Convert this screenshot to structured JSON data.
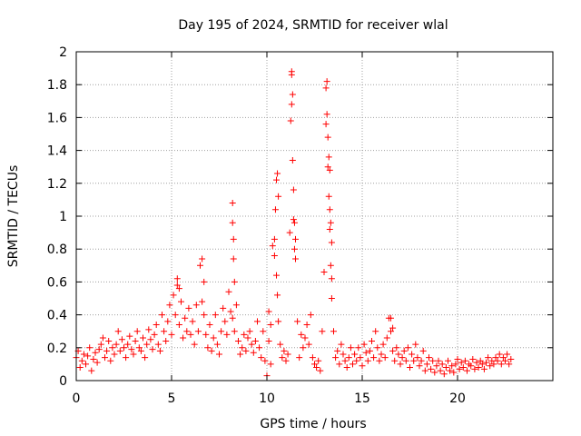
{
  "chart_data": {
    "type": "scatter",
    "title": "Day 195 of 2024, SRMTID for receiver wlal",
    "xlabel": "GPS time / hours",
    "ylabel": "SRMTID / TECUs",
    "xlim": [
      0,
      25
    ],
    "ylim": [
      0,
      2
    ],
    "x_ticks": [
      0,
      5,
      10,
      15,
      20
    ],
    "x_tick_labels": [
      "0",
      "5",
      "10",
      "15",
      "20"
    ],
    "y_ticks": [
      0,
      0.2,
      0.4,
      0.6,
      0.8,
      1,
      1.2,
      1.4,
      1.6,
      1.8,
      2
    ],
    "y_tick_labels": [
      "0",
      "0.2",
      "0.4",
      "0.6",
      "0.8",
      "1",
      "1.2",
      "1.4",
      "1.6",
      "1.8",
      "2"
    ],
    "grid": true,
    "marker": "+",
    "series": [
      {
        "name": "SRMTID",
        "color": "#ff0000",
        "x": [
          0.0,
          0.1,
          0.2,
          0.3,
          0.4,
          0.5,
          0.6,
          0.7,
          0.8,
          0.9,
          1.0,
          1.1,
          1.2,
          1.3,
          1.4,
          1.5,
          1.6,
          1.7,
          1.8,
          1.9,
          2.0,
          2.1,
          2.2,
          2.3,
          2.4,
          2.5,
          2.6,
          2.7,
          2.8,
          2.9,
          3.0,
          3.1,
          3.2,
          3.3,
          3.4,
          3.5,
          3.6,
          3.7,
          3.8,
          3.9,
          4.0,
          4.1,
          4.2,
          4.3,
          4.4,
          4.5,
          4.6,
          4.7,
          4.8,
          4.9,
          5.0,
          5.1,
          5.2,
          5.3,
          5.4,
          5.5,
          5.6,
          5.7,
          5.8,
          5.9,
          6.0,
          6.1,
          6.2,
          6.3,
          6.4,
          6.5,
          6.6,
          6.7,
          6.8,
          6.9,
          7.0,
          7.1,
          7.2,
          7.3,
          7.4,
          7.5,
          7.6,
          7.7,
          7.8,
          7.9,
          8.0,
          8.1,
          8.2,
          8.3,
          8.4,
          8.5,
          8.6,
          8.7,
          8.8,
          8.9,
          9.0,
          9.1,
          9.2,
          9.3,
          9.4,
          9.5,
          9.6,
          9.7,
          9.8,
          9.9,
          10.0,
          10.1,
          10.2,
          10.3,
          10.4,
          10.45,
          10.5,
          10.55,
          10.6,
          10.7,
          10.8,
          10.9,
          11.0,
          11.1,
          11.2,
          11.25,
          11.3,
          11.35,
          11.4,
          11.45,
          11.5,
          11.6,
          11.7,
          11.8,
          11.9,
          12.0,
          12.1,
          12.2,
          12.3,
          12.4,
          12.5,
          12.6,
          12.7,
          12.8,
          12.9,
          13.0,
          13.1,
          13.15,
          13.2,
          13.25,
          13.3,
          13.35,
          13.4,
          13.5,
          13.6,
          13.7,
          13.8,
          13.9,
          14.0,
          14.1,
          14.2,
          14.3,
          14.4,
          14.5,
          14.6,
          14.7,
          14.8,
          14.9,
          15.0,
          15.1,
          15.2,
          15.3,
          15.4,
          15.5,
          15.6,
          15.7,
          15.8,
          15.9,
          16.0,
          16.1,
          16.2,
          16.3,
          16.4,
          16.5,
          16.6,
          16.7,
          16.8,
          16.9,
          17.0,
          17.1,
          17.2,
          17.3,
          17.4,
          17.5,
          17.6,
          17.7,
          17.8,
          17.9,
          18.0,
          18.1,
          18.2,
          18.3,
          18.4,
          18.5,
          18.6,
          18.7,
          18.8,
          18.9,
          19.0,
          19.1,
          19.2,
          19.3,
          19.4,
          19.5,
          19.6,
          19.7,
          19.8,
          19.9,
          20.0,
          20.1,
          20.2,
          20.3,
          20.4,
          20.5,
          20.6,
          20.7,
          20.8,
          20.9,
          21.0,
          21.1,
          21.2,
          21.3,
          21.4,
          21.5,
          21.6,
          21.7,
          21.8,
          21.9,
          22.0,
          22.1,
          22.2,
          22.3,
          22.4,
          22.5,
          22.6,
          22.7,
          22.8,
          8.2,
          8.2,
          8.25,
          8.25,
          8.3,
          10.4,
          10.5,
          10.55,
          10.6,
          11.3,
          11.3,
          11.35,
          11.4,
          11.45,
          11.5,
          13.1,
          13.15,
          13.2,
          13.25,
          13.3,
          13.3,
          13.35,
          13.4,
          13.4,
          10.1,
          10.2,
          6.6,
          6.7,
          5.3,
          5.4,
          16.5,
          16.6
        ],
        "y": [
          0.14,
          0.18,
          0.08,
          0.12,
          0.16,
          0.1,
          0.15,
          0.2,
          0.06,
          0.13,
          0.17,
          0.11,
          0.19,
          0.22,
          0.26,
          0.14,
          0.18,
          0.24,
          0.12,
          0.2,
          0.16,
          0.22,
          0.3,
          0.18,
          0.25,
          0.2,
          0.14,
          0.22,
          0.27,
          0.19,
          0.16,
          0.24,
          0.3,
          0.2,
          0.18,
          0.26,
          0.14,
          0.22,
          0.31,
          0.25,
          0.19,
          0.28,
          0.34,
          0.22,
          0.18,
          0.4,
          0.3,
          0.24,
          0.36,
          0.46,
          0.28,
          0.52,
          0.4,
          0.58,
          0.34,
          0.48,
          0.26,
          0.38,
          0.3,
          0.44,
          0.28,
          0.36,
          0.22,
          0.46,
          0.3,
          0.7,
          0.48,
          0.4,
          0.28,
          0.2,
          0.34,
          0.18,
          0.26,
          0.4,
          0.22,
          0.16,
          0.3,
          0.44,
          0.36,
          0.28,
          0.54,
          0.42,
          0.38,
          0.3,
          0.46,
          0.24,
          0.16,
          0.2,
          0.28,
          0.18,
          0.26,
          0.3,
          0.22,
          0.17,
          0.24,
          0.36,
          0.2,
          0.14,
          0.3,
          0.12,
          0.03,
          0.24,
          0.1,
          0.82,
          0.76,
          1.04,
          0.64,
          0.52,
          0.36,
          0.22,
          0.14,
          0.18,
          0.12,
          0.16,
          0.9,
          1.58,
          1.86,
          1.74,
          0.98,
          0.8,
          0.74,
          0.36,
          0.14,
          0.28,
          0.2,
          0.26,
          0.34,
          0.22,
          0.4,
          0.14,
          0.1,
          0.08,
          0.12,
          0.06,
          0.3,
          0.66,
          1.78,
          1.62,
          1.3,
          1.12,
          0.92,
          0.7,
          0.5,
          0.3,
          0.14,
          0.18,
          0.1,
          0.22,
          0.16,
          0.12,
          0.08,
          0.14,
          0.2,
          0.1,
          0.16,
          0.12,
          0.2,
          0.14,
          0.09,
          0.22,
          0.17,
          0.12,
          0.18,
          0.24,
          0.14,
          0.3,
          0.2,
          0.12,
          0.16,
          0.22,
          0.14,
          0.26,
          0.38,
          0.3,
          0.18,
          0.12,
          0.2,
          0.16,
          0.1,
          0.14,
          0.18,
          0.12,
          0.2,
          0.08,
          0.16,
          0.12,
          0.22,
          0.14,
          0.09,
          0.12,
          0.18,
          0.06,
          0.1,
          0.14,
          0.07,
          0.12,
          0.05,
          0.09,
          0.12,
          0.06,
          0.1,
          0.04,
          0.08,
          0.12,
          0.06,
          0.09,
          0.05,
          0.1,
          0.13,
          0.07,
          0.11,
          0.08,
          0.12,
          0.06,
          0.1,
          0.09,
          0.13,
          0.07,
          0.11,
          0.08,
          0.12,
          0.1,
          0.07,
          0.11,
          0.14,
          0.09,
          0.12,
          0.1,
          0.14,
          0.12,
          0.16,
          0.1,
          0.14,
          0.12,
          0.16,
          0.1,
          0.13,
          1.08,
          0.96,
          0.86,
          0.74,
          0.6,
          0.86,
          1.22,
          1.26,
          1.12,
          1.68,
          1.88,
          1.34,
          1.16,
          0.96,
          0.86,
          1.56,
          1.82,
          1.48,
          1.36,
          1.28,
          1.04,
          0.96,
          0.84,
          0.62,
          0.42,
          0.34,
          0.74,
          0.6,
          0.62,
          0.56,
          0.38,
          0.32
        ]
      }
    ]
  }
}
